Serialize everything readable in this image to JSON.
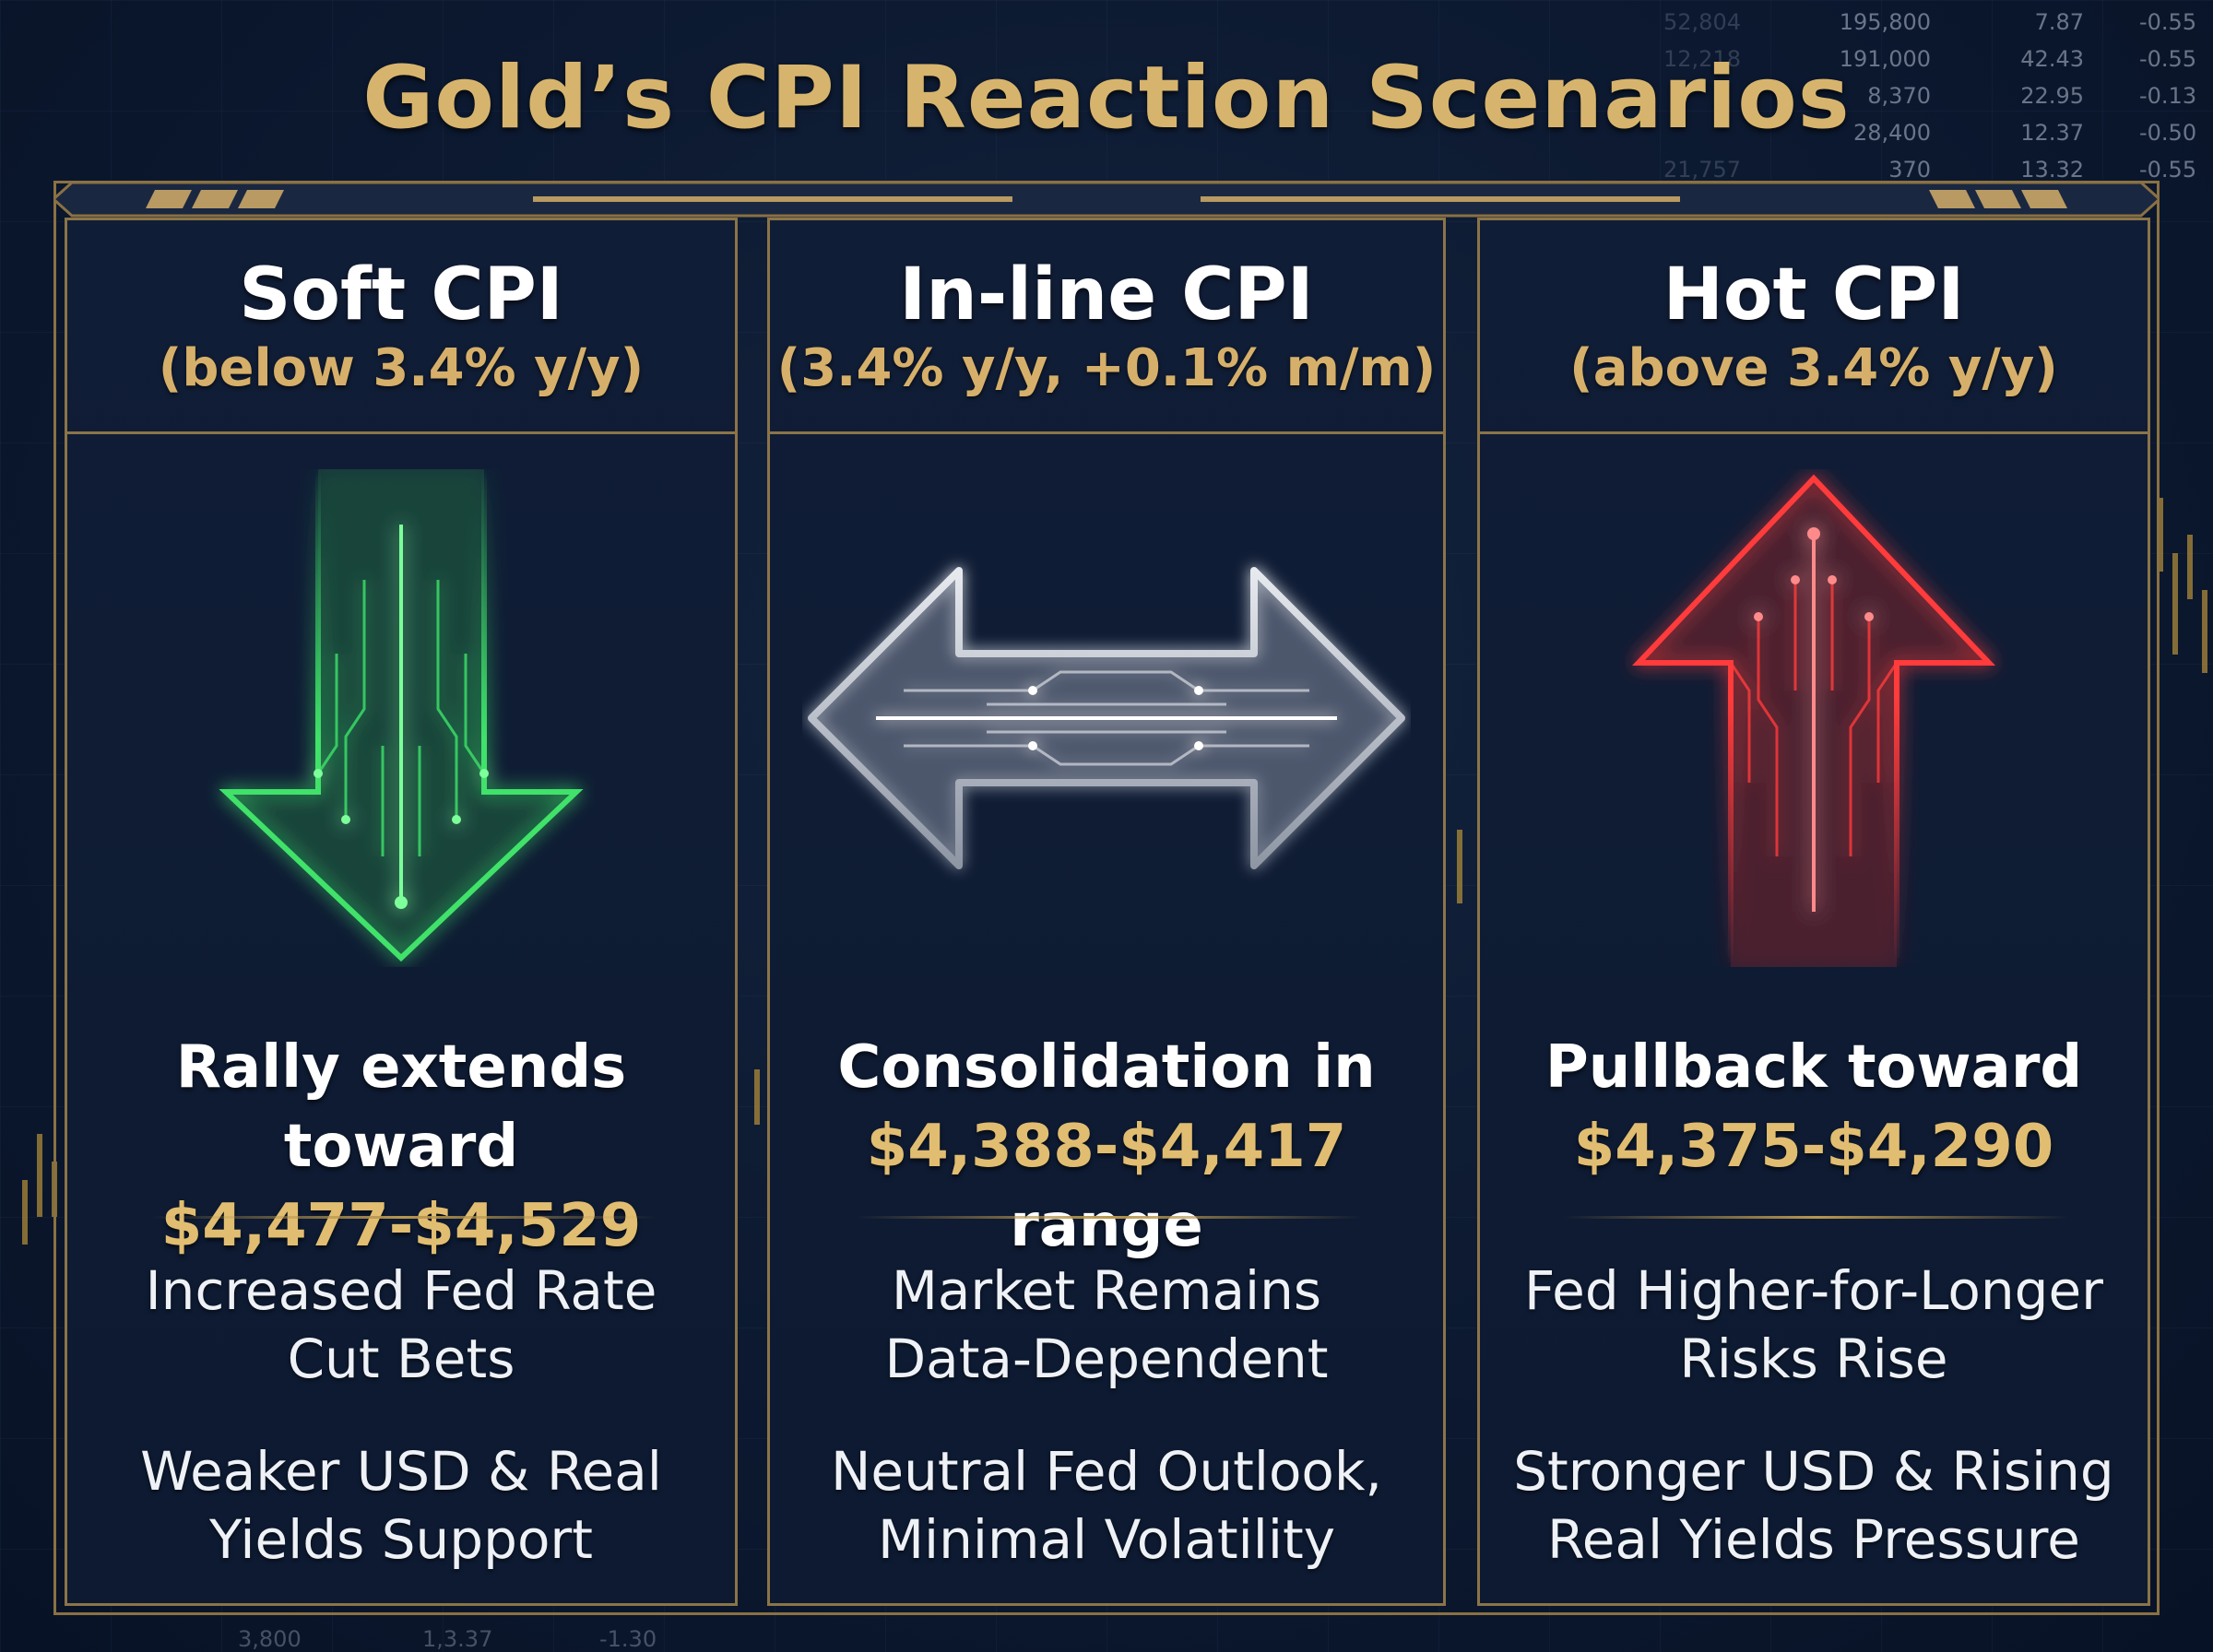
{
  "title": "Gold’s CPI Reaction Scenarios",
  "ticker": {
    "col1": [
      "52,804",
      "12,218",
      "",
      "",
      "21,757"
    ],
    "col2": [
      "195,800",
      "191,000",
      "8,370",
      "28,400",
      "370"
    ],
    "col3": [
      "7.87",
      "42.43",
      "22.95",
      "12.37",
      "13.32"
    ],
    "col4": [
      "-0.55",
      "-0.55",
      "-0.13",
      "-0.50",
      "-0.55"
    ],
    "bottom": [
      "3,800",
      "1,3.37",
      "-1.30"
    ]
  },
  "scenarios": [
    {
      "name": "Soft CPI",
      "condition": "(below 3.4% y/y)",
      "arrow": "down-arrow-icon",
      "arrow_color": "#3fe26a",
      "outcome_line1": "Rally extends toward",
      "outcome_range": "$4,477-$4,529",
      "outcome_suffix": "",
      "point1_line1": "Increased Fed Rate",
      "point1_line2": "Cut Bets",
      "point2_line1": "Weaker USD & Real",
      "point2_line2": "Yields Support"
    },
    {
      "name": "In-line CPI",
      "condition": "(3.4% y/y, +0.1% m/m)",
      "arrow": "horizontal-double-arrow-icon",
      "arrow_color": "#c8ccd4",
      "outcome_line1": "Consolidation in",
      "outcome_range": "$4,388-$4,417",
      "outcome_suffix": " range",
      "point1_line1": "Market Remains",
      "point1_line2": "Data-Dependent",
      "point2_line1": "Neutral Fed Outlook,",
      "point2_line2": "Minimal Volatility"
    },
    {
      "name": "Hot CPI",
      "condition": "(above 3.4% y/y)",
      "arrow": "up-arrow-icon",
      "arrow_color": "#ff3b3b",
      "outcome_line1": "Pullback toward",
      "outcome_range": "$4,375-$4,290",
      "outcome_suffix": "",
      "point1_line1": "Fed Higher-for-Longer",
      "point1_line2": "Risks Rise",
      "point2_line1": "Stronger USD & Rising",
      "point2_line2": "Real Yields Pressure"
    }
  ]
}
